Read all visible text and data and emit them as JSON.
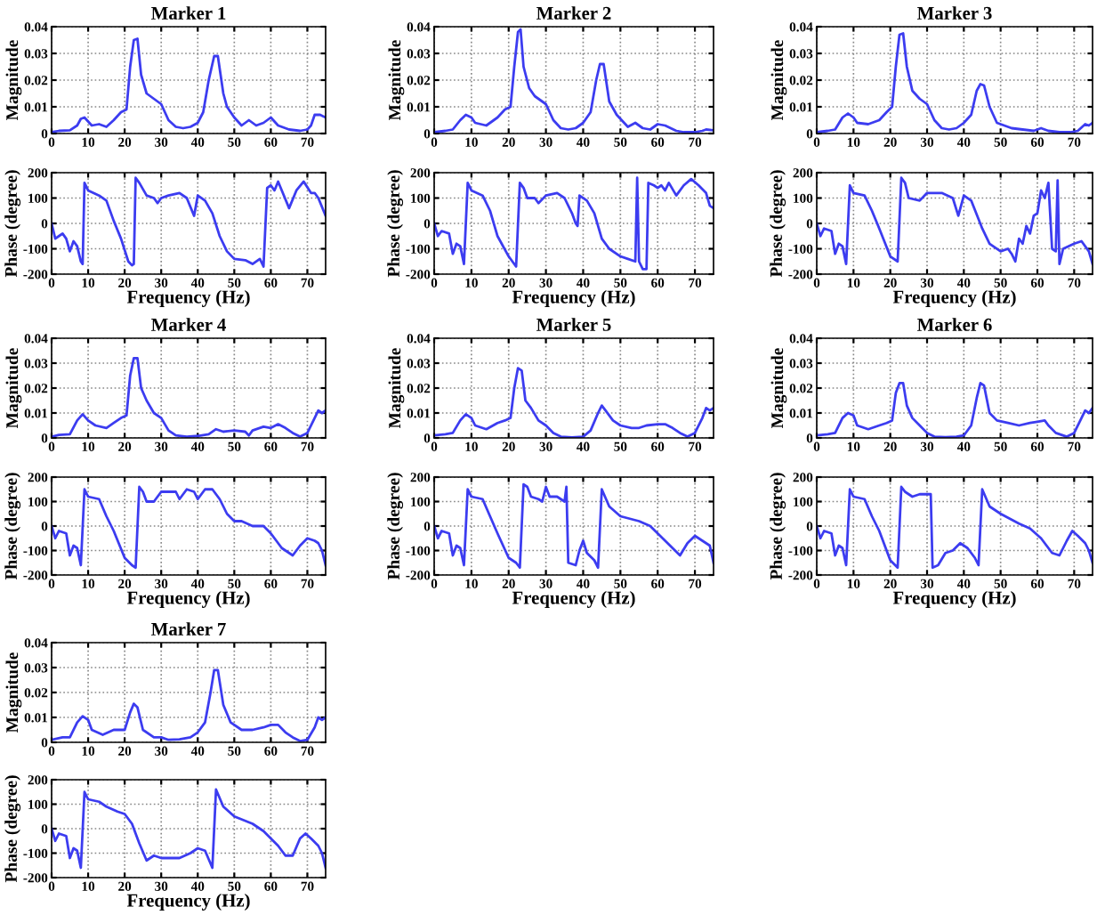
{
  "chart_data": [
    {
      "type": "line",
      "title": "Marker 1",
      "ylabel": "Magnitude",
      "xlim": [
        0,
        75
      ],
      "ylim": [
        0,
        0.04
      ],
      "xticks": [
        0,
        10,
        20,
        30,
        40,
        50,
        60,
        70
      ],
      "yticks": [
        0,
        0.01,
        0.02,
        0.03,
        0.04
      ],
      "grid": true,
      "series": [
        {
          "color": "#3c3cf0",
          "x": [
            0,
            2,
            5,
            7,
            8,
            9,
            10,
            11,
            13,
            15,
            17,
            19,
            20.5,
            21.5,
            22.5,
            23.5,
            24.5,
            26,
            28,
            30,
            32,
            34,
            36,
            38,
            40,
            41.5,
            43,
            44.5,
            45.5,
            47,
            48,
            50,
            52,
            54,
            56,
            58,
            60,
            62,
            65,
            68,
            70,
            71,
            72,
            73.5,
            75
          ],
          "values": [
            0.0005,
            0.001,
            0.0012,
            0.003,
            0.0055,
            0.006,
            0.0045,
            0.003,
            0.0035,
            0.0025,
            0.005,
            0.008,
            0.009,
            0.025,
            0.035,
            0.0355,
            0.022,
            0.015,
            0.013,
            0.011,
            0.005,
            0.0025,
            0.002,
            0.0025,
            0.004,
            0.008,
            0.02,
            0.029,
            0.029,
            0.015,
            0.01,
            0.006,
            0.003,
            0.005,
            0.003,
            0.004,
            0.006,
            0.003,
            0.0015,
            0.001,
            0.0015,
            0.003,
            0.007,
            0.007,
            0.006
          ]
        }
      ]
    },
    {
      "type": "line",
      "xlabel": "Frequency (Hz)",
      "ylabel": "Phase (degree)",
      "xlim": [
        0,
        75
      ],
      "ylim": [
        -200,
        200
      ],
      "xticks": [
        0,
        10,
        20,
        30,
        40,
        50,
        60,
        70
      ],
      "yticks": [
        -200,
        -100,
        0,
        100,
        200
      ],
      "grid": true,
      "series": [
        {
          "color": "#3c3cf0",
          "x": [
            0,
            1,
            2,
            3,
            4,
            5,
            6,
            7,
            8,
            8.5,
            9,
            10,
            13,
            15,
            17,
            19,
            21,
            22,
            22.5,
            23,
            24,
            26,
            28,
            29,
            30,
            32,
            35,
            37,
            39,
            40,
            42,
            44,
            46,
            48,
            50,
            53,
            55,
            57,
            58,
            59,
            60,
            61,
            62,
            63,
            65,
            67,
            69,
            71,
            72,
            73,
            75
          ],
          "values": [
            0,
            -60,
            -50,
            -40,
            -60,
            -110,
            -70,
            -90,
            -150,
            -160,
            160,
            130,
            110,
            90,
            10,
            -60,
            -150,
            -165,
            -160,
            180,
            160,
            110,
            100,
            80,
            100,
            110,
            120,
            100,
            30,
            110,
            90,
            40,
            -50,
            -110,
            -140,
            -145,
            -160,
            -140,
            -170,
            140,
            150,
            130,
            165,
            130,
            60,
            130,
            165,
            120,
            120,
            100,
            30
          ]
        }
      ]
    },
    {
      "type": "line",
      "title": "Marker 2",
      "ylabel": "Magnitude",
      "xlim": [
        0,
        75
      ],
      "ylim": [
        0,
        0.04
      ],
      "xticks": [
        0,
        10,
        20,
        30,
        40,
        50,
        60,
        70
      ],
      "yticks": [
        0,
        0.01,
        0.02,
        0.03,
        0.04
      ],
      "grid": true,
      "series": [
        {
          "color": "#3c3cf0",
          "x": [
            0,
            3,
            5,
            7,
            8.5,
            10,
            11,
            14,
            17,
            19,
            20.5,
            21.5,
            22.5,
            23.2,
            24,
            25.5,
            27,
            29,
            30,
            32,
            34,
            36,
            38,
            40,
            42,
            43.5,
            44.5,
            45.5,
            47,
            49,
            51,
            52,
            54,
            56,
            58,
            60,
            62,
            65,
            67,
            70,
            72,
            73,
            75
          ],
          "values": [
            0.0005,
            0.001,
            0.0015,
            0.005,
            0.007,
            0.006,
            0.004,
            0.003,
            0.006,
            0.009,
            0.01,
            0.025,
            0.038,
            0.039,
            0.025,
            0.017,
            0.014,
            0.012,
            0.011,
            0.005,
            0.002,
            0.0015,
            0.002,
            0.004,
            0.008,
            0.02,
            0.026,
            0.026,
            0.012,
            0.007,
            0.004,
            0.0025,
            0.004,
            0.002,
            0.0015,
            0.0035,
            0.003,
            0.001,
            0.0005,
            0.0005,
            0.001,
            0.0015,
            0.0012
          ]
        }
      ]
    },
    {
      "type": "line",
      "xlabel": "Frequency (Hz)",
      "ylabel": "Phase (degree)",
      "xlim": [
        0,
        75
      ],
      "ylim": [
        -200,
        200
      ],
      "xticks": [
        0,
        10,
        20,
        30,
        40,
        50,
        60,
        70
      ],
      "yticks": [
        -200,
        -100,
        0,
        100,
        200
      ],
      "grid": true,
      "series": [
        {
          "color": "#3c3cf0",
          "x": [
            0,
            1,
            2,
            4,
            5,
            6,
            7,
            8,
            9,
            10,
            13,
            15,
            17,
            20,
            22,
            23,
            24,
            25,
            27,
            28,
            30,
            33,
            35,
            37,
            38,
            38.5,
            39,
            41,
            43,
            45,
            47,
            50,
            52,
            54,
            54.5,
            55,
            56,
            57,
            57.5,
            59,
            60,
            61,
            62,
            63,
            65,
            67,
            69,
            71,
            73,
            74,
            75
          ],
          "values": [
            0,
            -50,
            -30,
            -40,
            -120,
            -80,
            -90,
            -160,
            160,
            130,
            110,
            50,
            -50,
            -130,
            -170,
            160,
            140,
            100,
            100,
            80,
            110,
            120,
            100,
            40,
            0,
            -10,
            110,
            90,
            40,
            -60,
            -100,
            -130,
            -140,
            -150,
            180,
            -150,
            -180,
            -180,
            160,
            150,
            140,
            150,
            130,
            160,
            110,
            150,
            175,
            150,
            120,
            70,
            60
          ]
        }
      ]
    },
    {
      "type": "line",
      "title": "Marker 3",
      "ylabel": "Magnitude",
      "xlim": [
        0,
        75
      ],
      "ylim": [
        0,
        0.04
      ],
      "xticks": [
        0,
        10,
        20,
        30,
        40,
        50,
        60,
        70
      ],
      "yticks": [
        0,
        0.01,
        0.02,
        0.03,
        0.04
      ],
      "grid": true,
      "series": [
        {
          "color": "#3c3cf0",
          "x": [
            0,
            3,
            5,
            7,
            8.5,
            10,
            11,
            14,
            17,
            19,
            20.5,
            21.5,
            22.5,
            23.5,
            24.5,
            26,
            28,
            30,
            32,
            34,
            36,
            38,
            40,
            42,
            43.5,
            44.5,
            45.5,
            47,
            49,
            51,
            53,
            56,
            59,
            61,
            63,
            66,
            69,
            71,
            73,
            74,
            75
          ],
          "values": [
            0.0005,
            0.001,
            0.0015,
            0.006,
            0.0075,
            0.006,
            0.004,
            0.0035,
            0.005,
            0.008,
            0.01,
            0.025,
            0.037,
            0.0375,
            0.025,
            0.016,
            0.013,
            0.011,
            0.005,
            0.002,
            0.0015,
            0.002,
            0.004,
            0.007,
            0.016,
            0.0185,
            0.018,
            0.01,
            0.004,
            0.003,
            0.002,
            0.0015,
            0.001,
            0.002,
            0.001,
            0.0005,
            0.0005,
            0.001,
            0.0035,
            0.003,
            0.004
          ]
        }
      ]
    },
    {
      "type": "line",
      "xlabel": "Frequency (Hz)",
      "ylabel": "Phase (degree)",
      "xlim": [
        0,
        75
      ],
      "ylim": [
        -200,
        200
      ],
      "xticks": [
        0,
        10,
        20,
        30,
        40,
        50,
        60,
        70
      ],
      "yticks": [
        -200,
        -100,
        0,
        100,
        200
      ],
      "grid": true,
      "series": [
        {
          "color": "#3c3cf0",
          "x": [
            0,
            1,
            2,
            4,
            5,
            6,
            7,
            8,
            9,
            10,
            13,
            15,
            17,
            20,
            22,
            23,
            24,
            25,
            28,
            30,
            34,
            37,
            38.5,
            40,
            42,
            45,
            47,
            50,
            52,
            53,
            54,
            55,
            56,
            57,
            58,
            59,
            60,
            61,
            62,
            63,
            64,
            65,
            65.5,
            66,
            67,
            70,
            72,
            74,
            75
          ],
          "values": [
            0,
            -50,
            -20,
            -30,
            -120,
            -80,
            -90,
            -160,
            150,
            120,
            110,
            50,
            -20,
            -130,
            -150,
            180,
            160,
            100,
            90,
            120,
            120,
            100,
            30,
            110,
            90,
            -20,
            -80,
            -110,
            -100,
            -120,
            -150,
            -60,
            -80,
            -10,
            -40,
            30,
            40,
            130,
            100,
            160,
            -100,
            -110,
            170,
            -160,
            -100,
            -80,
            -70,
            -110,
            -160
          ]
        }
      ]
    },
    {
      "type": "line",
      "title": "Marker 4",
      "ylabel": "Magnitude",
      "xlim": [
        0,
        75
      ],
      "ylim": [
        0,
        0.04
      ],
      "xticks": [
        0,
        10,
        20,
        30,
        40,
        50,
        60,
        70
      ],
      "yticks": [
        0,
        0.01,
        0.02,
        0.03,
        0.04
      ],
      "grid": true,
      "series": [
        {
          "color": "#3c3cf0",
          "x": [
            0,
            2,
            5,
            7,
            8.5,
            10,
            12,
            15,
            17,
            19,
            20.5,
            21.5,
            22.5,
            23.5,
            24.5,
            26,
            28,
            30,
            32,
            34,
            37,
            40,
            43,
            45,
            47,
            50,
            53,
            54,
            55,
            58,
            60,
            62,
            64,
            66,
            68,
            70,
            72,
            73,
            74,
            75
          ],
          "values": [
            0.0005,
            0.0012,
            0.0015,
            0.007,
            0.0095,
            0.007,
            0.005,
            0.004,
            0.006,
            0.008,
            0.009,
            0.025,
            0.032,
            0.032,
            0.02,
            0.015,
            0.01,
            0.008,
            0.003,
            0.001,
            0.0005,
            0.0008,
            0.0015,
            0.0035,
            0.0025,
            0.003,
            0.0025,
            0.001,
            0.003,
            0.0045,
            0.004,
            0.0055,
            0.004,
            0.002,
            0.0005,
            0.002,
            0.008,
            0.011,
            0.01,
            0.011
          ]
        }
      ]
    },
    {
      "type": "line",
      "xlabel": "Frequency (Hz)",
      "ylabel": "Phase (degree)",
      "xlim": [
        0,
        75
      ],
      "ylim": [
        -200,
        200
      ],
      "xticks": [
        0,
        10,
        20,
        30,
        40,
        50,
        60,
        70
      ],
      "yticks": [
        -200,
        -100,
        0,
        100,
        200
      ],
      "grid": true,
      "series": [
        {
          "color": "#3c3cf0",
          "x": [
            0,
            1,
            2,
            4,
            5,
            6,
            7,
            8,
            9,
            10,
            13,
            15,
            17,
            20,
            22,
            23,
            24,
            25,
            26,
            28,
            30,
            32,
            34,
            35,
            37,
            39,
            40,
            42,
            44,
            46,
            48,
            50,
            52,
            55,
            58,
            60,
            63,
            66,
            68,
            70,
            72,
            73,
            74,
            75
          ],
          "values": [
            0,
            -50,
            -20,
            -30,
            -120,
            -80,
            -90,
            -160,
            150,
            120,
            110,
            40,
            -20,
            -130,
            -160,
            -170,
            160,
            140,
            100,
            100,
            140,
            140,
            140,
            110,
            150,
            140,
            110,
            150,
            150,
            110,
            50,
            20,
            20,
            0,
            0,
            -30,
            -90,
            -120,
            -80,
            -50,
            -60,
            -70,
            -100,
            -160
          ]
        }
      ]
    },
    {
      "type": "line",
      "title": "Marker 5",
      "ylabel": "Magnitude",
      "xlim": [
        0,
        75
      ],
      "ylim": [
        0,
        0.04
      ],
      "xticks": [
        0,
        10,
        20,
        30,
        40,
        50,
        60,
        70
      ],
      "yticks": [
        0,
        0.01,
        0.02,
        0.03,
        0.04
      ],
      "grid": true,
      "series": [
        {
          "color": "#3c3cf0",
          "x": [
            0,
            3,
            5,
            7,
            8.5,
            10,
            11,
            14,
            17,
            19,
            20.5,
            21.5,
            22.5,
            23.5,
            24.5,
            26,
            28,
            30,
            32,
            34,
            37,
            40,
            42,
            44,
            45,
            46,
            48,
            50,
            53,
            55,
            57,
            60,
            62,
            64,
            66,
            68,
            70,
            72,
            73,
            74,
            75
          ],
          "values": [
            0.001,
            0.0015,
            0.002,
            0.007,
            0.0095,
            0.008,
            0.005,
            0.0035,
            0.006,
            0.007,
            0.008,
            0.02,
            0.028,
            0.027,
            0.015,
            0.012,
            0.007,
            0.005,
            0.002,
            0.0005,
            0.0002,
            0.0005,
            0.003,
            0.01,
            0.013,
            0.011,
            0.007,
            0.005,
            0.004,
            0.004,
            0.005,
            0.0055,
            0.0055,
            0.004,
            0.002,
            0.0005,
            0.002,
            0.008,
            0.012,
            0.011,
            0.012
          ]
        }
      ]
    },
    {
      "type": "line",
      "xlabel": "Frequency (Hz)",
      "ylabel": "Phase (degree)",
      "xlim": [
        0,
        75
      ],
      "ylim": [
        -200,
        200
      ],
      "xticks": [
        0,
        10,
        20,
        30,
        40,
        50,
        60,
        70
      ],
      "yticks": [
        -200,
        -100,
        0,
        100,
        200
      ],
      "grid": true,
      "series": [
        {
          "color": "#3c3cf0",
          "x": [
            0,
            1,
            2,
            4,
            5,
            6,
            7,
            8,
            9,
            10,
            13,
            15,
            17,
            20,
            22,
            23,
            24,
            25,
            26,
            28,
            29,
            30,
            31,
            33,
            35,
            35.5,
            36,
            38,
            39,
            40,
            41,
            43,
            44,
            45,
            47,
            50,
            55,
            58,
            62,
            66,
            68,
            70,
            72,
            74,
            75
          ],
          "values": [
            0,
            -50,
            -20,
            -30,
            -120,
            -80,
            -90,
            -160,
            150,
            120,
            110,
            40,
            -30,
            -130,
            -150,
            -170,
            170,
            160,
            120,
            110,
            100,
            160,
            120,
            120,
            100,
            160,
            -150,
            -160,
            -100,
            -60,
            -110,
            -140,
            -170,
            150,
            80,
            40,
            20,
            0,
            -60,
            -120,
            -70,
            -40,
            -60,
            -80,
            -150
          ]
        }
      ]
    },
    {
      "type": "line",
      "title": "Marker 6",
      "ylabel": "Magnitude",
      "xlim": [
        0,
        75
      ],
      "ylim": [
        0,
        0.04
      ],
      "xticks": [
        0,
        10,
        20,
        30,
        40,
        50,
        60,
        70
      ],
      "yticks": [
        0,
        0.01,
        0.02,
        0.03,
        0.04
      ],
      "grid": true,
      "series": [
        {
          "color": "#3c3cf0",
          "x": [
            0,
            3,
            5,
            7,
            8.5,
            10,
            11,
            14,
            17,
            19,
            20.5,
            21.5,
            22.5,
            23.5,
            24.5,
            26,
            28,
            30,
            32,
            35,
            38,
            40,
            42,
            43.5,
            44.5,
            45.5,
            47,
            49,
            52,
            55,
            58,
            60,
            62,
            63,
            65,
            68,
            70,
            72,
            73,
            74,
            75
          ],
          "values": [
            0.001,
            0.0015,
            0.002,
            0.008,
            0.01,
            0.009,
            0.005,
            0.0035,
            0.005,
            0.006,
            0.007,
            0.018,
            0.022,
            0.022,
            0.013,
            0.008,
            0.005,
            0.002,
            0.0005,
            0.0003,
            0.0005,
            0.001,
            0.005,
            0.016,
            0.022,
            0.021,
            0.01,
            0.007,
            0.006,
            0.005,
            0.006,
            0.0065,
            0.007,
            0.005,
            0.002,
            0.0005,
            0.002,
            0.008,
            0.011,
            0.01,
            0.012
          ]
        }
      ]
    },
    {
      "type": "line",
      "xlabel": "Frequency (Hz)",
      "ylabel": "Phase (degree)",
      "xlim": [
        0,
        75
      ],
      "ylim": [
        -200,
        200
      ],
      "xticks": [
        0,
        10,
        20,
        30,
        40,
        50,
        60,
        70
      ],
      "yticks": [
        -200,
        -100,
        0,
        100,
        200
      ],
      "grid": true,
      "series": [
        {
          "color": "#3c3cf0",
          "x": [
            0,
            1,
            2,
            4,
            5,
            6,
            7,
            8,
            9,
            10,
            13,
            15,
            17,
            20,
            22,
            23,
            24,
            26,
            28,
            31,
            31.5,
            33,
            35,
            37,
            39,
            41,
            43,
            44,
            45,
            47,
            50,
            55,
            58,
            61,
            64,
            66,
            68,
            69.5,
            71,
            73,
            74,
            75
          ],
          "values": [
            0,
            -50,
            -20,
            -30,
            -120,
            -80,
            -90,
            -160,
            150,
            120,
            110,
            40,
            -20,
            -140,
            -170,
            160,
            140,
            120,
            130,
            130,
            -170,
            -160,
            -110,
            -100,
            -70,
            -90,
            -130,
            -160,
            150,
            80,
            50,
            10,
            -10,
            -50,
            -110,
            -120,
            -60,
            -20,
            -40,
            -70,
            -100,
            -150
          ]
        }
      ]
    },
    {
      "type": "line",
      "title": "Marker 7",
      "ylabel": "Magnitude",
      "xlim": [
        0,
        75
      ],
      "ylim": [
        0,
        0.04
      ],
      "xticks": [
        0,
        10,
        20,
        30,
        40,
        50,
        60,
        70
      ],
      "yticks": [
        0,
        0.01,
        0.02,
        0.03,
        0.04
      ],
      "grid": true,
      "series": [
        {
          "color": "#3c3cf0",
          "x": [
            0,
            3,
            5,
            7,
            8.5,
            10,
            11,
            14,
            17,
            20,
            21.5,
            22.5,
            23.5,
            25,
            28,
            30,
            32,
            35,
            38,
            40,
            42,
            43.5,
            44.5,
            45.5,
            47,
            49,
            52,
            55,
            58,
            60,
            62,
            64,
            66,
            68,
            70,
            72,
            73,
            74,
            75
          ],
          "values": [
            0.001,
            0.002,
            0.002,
            0.008,
            0.0105,
            0.009,
            0.005,
            0.003,
            0.005,
            0.005,
            0.012,
            0.0155,
            0.014,
            0.005,
            0.002,
            0.002,
            0.001,
            0.0012,
            0.002,
            0.004,
            0.008,
            0.02,
            0.029,
            0.029,
            0.015,
            0.008,
            0.005,
            0.005,
            0.006,
            0.007,
            0.007,
            0.004,
            0.002,
            0.0005,
            0.001,
            0.006,
            0.01,
            0.009,
            0.01
          ]
        }
      ]
    },
    {
      "type": "line",
      "xlabel": "Frequency (Hz)",
      "ylabel": "Phase (degree)",
      "xlim": [
        0,
        75
      ],
      "ylim": [
        -200,
        200
      ],
      "xticks": [
        0,
        10,
        20,
        30,
        40,
        50,
        60,
        70
      ],
      "yticks": [
        -200,
        -100,
        0,
        100,
        200
      ],
      "grid": true,
      "series": [
        {
          "color": "#3c3cf0",
          "x": [
            0,
            1,
            2,
            4,
            5,
            6,
            7,
            8,
            9,
            10,
            13,
            15,
            18,
            20,
            22,
            24,
            26,
            28,
            30,
            32,
            35,
            38,
            40,
            42,
            44,
            45,
            47,
            50,
            55,
            58,
            62,
            64,
            66,
            68,
            69.5,
            71,
            73,
            74,
            75
          ],
          "values": [
            0,
            -50,
            -20,
            -30,
            -120,
            -80,
            -90,
            -160,
            150,
            120,
            110,
            90,
            70,
            60,
            20,
            -60,
            -130,
            -110,
            -120,
            -120,
            -120,
            -100,
            -80,
            -90,
            -160,
            160,
            90,
            50,
            20,
            -10,
            -70,
            -110,
            -110,
            -40,
            -20,
            -40,
            -70,
            -100,
            -160
          ]
        }
      ]
    }
  ]
}
